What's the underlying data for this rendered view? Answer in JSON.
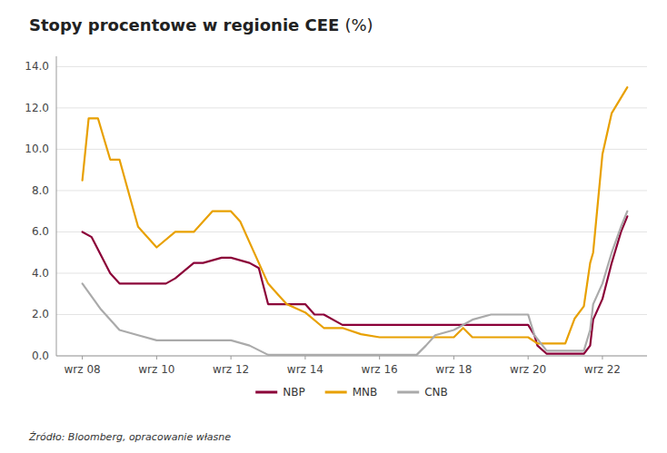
{
  "chart_data": {
    "type": "line",
    "title": "Stopy procentowe w regionie CEE",
    "subtitle": "(%)",
    "annotations": [
      "Źródło: Bloomberg, opracowanie własne"
    ],
    "xlim": [
      2007.3,
      2023.2
    ],
    "xticks": [
      {
        "value": 2008,
        "label": "wrz 08"
      },
      {
        "value": 2010,
        "label": "wrz 10"
      },
      {
        "value": 2012,
        "label": "wrz 12"
      },
      {
        "value": 2014,
        "label": "wrz 14"
      },
      {
        "value": 2016,
        "label": "wrz 16"
      },
      {
        "value": 2018,
        "label": "wrz 18"
      },
      {
        "value": 2020,
        "label": "wrz 20"
      },
      {
        "value": 2022,
        "label": "wrz 22"
      }
    ],
    "ylim": [
      0,
      14.5
    ],
    "yticks": [
      {
        "value": 0.0,
        "label": "0.0"
      },
      {
        "value": 2.0,
        "label": "2.0"
      },
      {
        "value": 4.0,
        "label": "4.0"
      },
      {
        "value": 6.0,
        "label": "6.0"
      },
      {
        "value": 8.0,
        "label": "8.0"
      },
      {
        "value": 10.0,
        "label": "10.0"
      },
      {
        "value": 12.0,
        "label": "12.0"
      },
      {
        "value": 14.0,
        "label": "14.0"
      }
    ],
    "grid": true,
    "legend": "bottom",
    "series": [
      {
        "name": "NBP",
        "color": "#8B0038",
        "x": [
          2008.0,
          2008.25,
          2008.75,
          2009.0,
          2009.5,
          2010.0,
          2010.25,
          2010.5,
          2011.0,
          2011.25,
          2011.75,
          2012.0,
          2012.5,
          2012.75,
          2013.0,
          2013.5,
          2014.0,
          2014.25,
          2014.5,
          2015.0,
          2015.5,
          2016.0,
          2016.5,
          2017.0,
          2017.5,
          2018.0,
          2018.5,
          2019.0,
          2019.5,
          2020.0,
          2020.17,
          2020.25,
          2020.5,
          2021.0,
          2021.5,
          2021.67,
          2021.75,
          2022.0,
          2022.25,
          2022.5,
          2022.67
        ],
        "values": [
          6.0,
          5.75,
          4.0,
          3.5,
          3.5,
          3.5,
          3.5,
          3.75,
          4.5,
          4.5,
          4.75,
          4.75,
          4.5,
          4.25,
          2.5,
          2.5,
          2.5,
          2.0,
          2.0,
          1.5,
          1.5,
          1.5,
          1.5,
          1.5,
          1.5,
          1.5,
          1.5,
          1.5,
          1.5,
          1.5,
          1.0,
          0.5,
          0.1,
          0.1,
          0.1,
          0.5,
          1.75,
          2.75,
          4.5,
          6.0,
          6.75
        ]
      },
      {
        "name": "MNB",
        "color": "#E8A000",
        "x": [
          2008.0,
          2008.17,
          2008.42,
          2008.75,
          2009.0,
          2009.5,
          2010.0,
          2010.5,
          2011.0,
          2011.5,
          2012.0,
          2012.25,
          2012.5,
          2012.75,
          2013.0,
          2013.25,
          2013.5,
          2014.0,
          2014.5,
          2015.0,
          2015.5,
          2016.0,
          2016.5,
          2017.0,
          2017.5,
          2018.0,
          2018.25,
          2018.5,
          2019.0,
          2019.5,
          2020.0,
          2020.25,
          2020.5,
          2021.0,
          2021.25,
          2021.5,
          2021.67,
          2021.75,
          2022.0,
          2022.25,
          2022.67
        ],
        "values": [
          8.5,
          11.5,
          11.5,
          9.5,
          9.5,
          6.25,
          5.25,
          6.0,
          6.0,
          7.0,
          7.0,
          6.5,
          5.5,
          4.5,
          3.5,
          3.0,
          2.5,
          2.1,
          1.35,
          1.35,
          1.05,
          0.9,
          0.9,
          0.9,
          0.9,
          0.9,
          1.35,
          0.9,
          0.9,
          0.9,
          0.9,
          0.6,
          0.6,
          0.6,
          1.8,
          2.4,
          4.5,
          5.0,
          9.75,
          11.75,
          13.0
        ]
      },
      {
        "name": "CNB",
        "color": "#AAAAAA",
        "x": [
          2008.0,
          2008.5,
          2009.0,
          2009.5,
          2010.0,
          2010.5,
          2011.0,
          2011.5,
          2012.0,
          2012.5,
          2013.0,
          2013.5,
          2014.0,
          2014.5,
          2015.0,
          2015.5,
          2016.0,
          2016.5,
          2017.0,
          2017.25,
          2017.5,
          2018.0,
          2018.5,
          2019.0,
          2019.5,
          2020.0,
          2020.17,
          2020.5,
          2021.0,
          2021.5,
          2021.67,
          2021.75,
          2022.0,
          2022.25,
          2022.5,
          2022.67
        ],
        "values": [
          3.5,
          2.25,
          1.25,
          1.0,
          0.75,
          0.75,
          0.75,
          0.75,
          0.75,
          0.5,
          0.05,
          0.05,
          0.05,
          0.05,
          0.05,
          0.05,
          0.05,
          0.05,
          0.05,
          0.5,
          1.0,
          1.25,
          1.75,
          2.0,
          2.0,
          2.0,
          1.0,
          0.25,
          0.25,
          0.25,
          1.25,
          2.5,
          3.5,
          5.0,
          6.25,
          7.0
        ]
      }
    ]
  }
}
